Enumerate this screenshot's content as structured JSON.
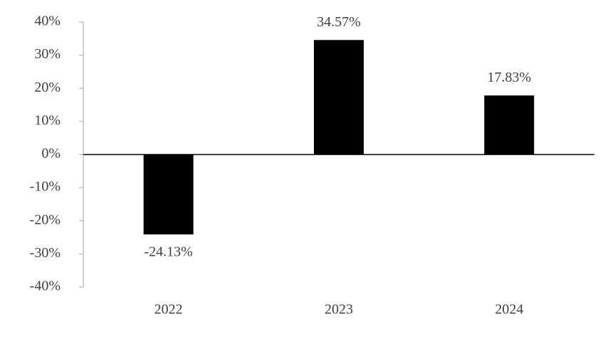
{
  "chart_data": {
    "type": "bar",
    "categories": [
      "2022",
      "2023",
      "2024"
    ],
    "values": [
      -24.13,
      34.57,
      17.83
    ],
    "value_labels": [
      "-24.13%",
      "34.57%",
      "17.83%"
    ],
    "color": "#000000",
    "ylim": [
      -40,
      40
    ],
    "yticks": [
      {
        "value": -40,
        "label": "-40%"
      },
      {
        "value": -30,
        "label": "-30%"
      },
      {
        "value": -20,
        "label": "-20%"
      },
      {
        "value": -10,
        "label": "-10%"
      },
      {
        "value": 0,
        "label": "0%"
      },
      {
        "value": 10,
        "label": "10%"
      },
      {
        "value": 20,
        "label": "20%"
      },
      {
        "value": 30,
        "label": "30%"
      },
      {
        "value": 40,
        "label": "40%"
      }
    ],
    "grid": false
  }
}
